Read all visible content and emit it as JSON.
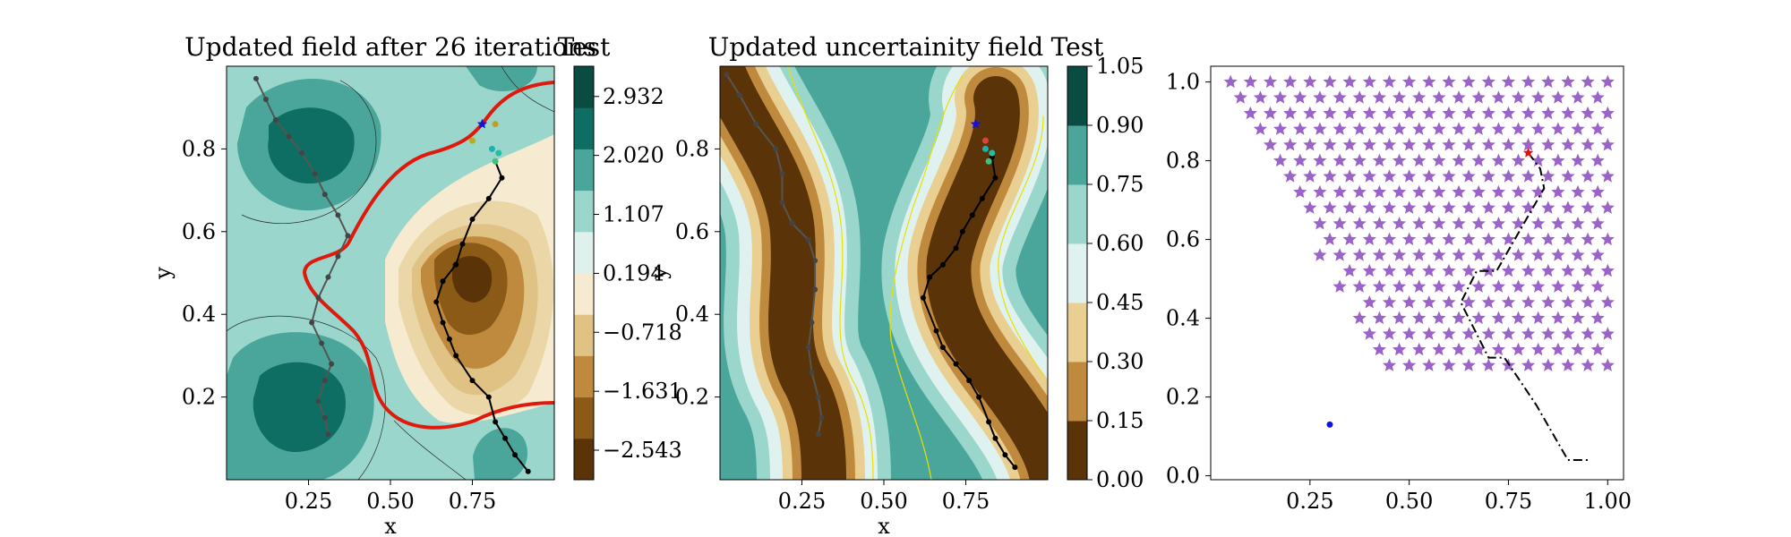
{
  "chart_data": [
    {
      "type": "contour",
      "title": "Updated field after 26 iterations",
      "xlabel": "x",
      "ylabel": "y",
      "xlim": [
        0.0,
        1.0
      ],
      "ylim": [
        0.0,
        1.0
      ],
      "x_ticks": [
        "0.25",
        "0.50",
        "0.75"
      ],
      "y_ticks": [
        "0.2",
        "0.4",
        "0.6",
        "0.8"
      ],
      "colorbar": {
        "title": "Test",
        "min": -3.0,
        "max": 3.4,
        "ticks": [
          "2.932",
          "2.020",
          "1.107",
          "0.194",
          "−0.718",
          "−1.631",
          "−2.543"
        ],
        "tick_values": [
          2.932,
          2.02,
          1.107,
          0.194,
          -0.718,
          -1.631,
          -2.543
        ],
        "colors": [
          "#5a3408",
          "#8b5a16",
          "#c08a3e",
          "#dfc284",
          "#f6ead0",
          "#dff1ec",
          "#9ad6cc",
          "#4aa69a",
          "#0f6e63",
          "#0a4b42"
        ]
      },
      "colors": {
        "boundary": "#e0190d",
        "path_dark": "#000000",
        "path_grey": "#555555"
      },
      "path_black": [
        [
          0.92,
          0.02
        ],
        [
          0.88,
          0.06
        ],
        [
          0.85,
          0.1
        ],
        [
          0.82,
          0.14
        ],
        [
          0.8,
          0.2
        ],
        [
          0.75,
          0.24
        ],
        [
          0.7,
          0.3
        ],
        [
          0.68,
          0.34
        ],
        [
          0.66,
          0.38
        ],
        [
          0.64,
          0.43
        ],
        [
          0.66,
          0.48
        ],
        [
          0.7,
          0.52
        ],
        [
          0.72,
          0.57
        ],
        [
          0.75,
          0.63
        ],
        [
          0.8,
          0.68
        ],
        [
          0.84,
          0.73
        ],
        [
          0.82,
          0.77
        ]
      ],
      "path_grey": [
        [
          0.31,
          0.11
        ],
        [
          0.3,
          0.15
        ],
        [
          0.28,
          0.19
        ],
        [
          0.3,
          0.24
        ],
        [
          0.32,
          0.28
        ],
        [
          0.29,
          0.33
        ],
        [
          0.26,
          0.38
        ],
        [
          0.28,
          0.44
        ],
        [
          0.31,
          0.49
        ],
        [
          0.34,
          0.54
        ],
        [
          0.37,
          0.59
        ],
        [
          0.34,
          0.64
        ],
        [
          0.3,
          0.69
        ],
        [
          0.27,
          0.74
        ],
        [
          0.23,
          0.79
        ],
        [
          0.19,
          0.83
        ],
        [
          0.15,
          0.87
        ],
        [
          0.12,
          0.92
        ],
        [
          0.09,
          0.97
        ]
      ],
      "sample_points": [
        {
          "x": 0.78,
          "y": 0.86,
          "color": "#1010e0",
          "shape": "star"
        },
        {
          "x": 0.82,
          "y": 0.86,
          "color": "#c0a020",
          "shape": "dot"
        },
        {
          "x": 0.75,
          "y": 0.82,
          "color": "#b0b020",
          "shape": "dot"
        },
        {
          "x": 0.81,
          "y": 0.8,
          "color": "#20b0b0",
          "shape": "dot"
        },
        {
          "x": 0.83,
          "y": 0.79,
          "color": "#20c0a0",
          "shape": "dot"
        },
        {
          "x": 0.82,
          "y": 0.77,
          "color": "#40c080",
          "shape": "dot"
        }
      ]
    },
    {
      "type": "contour",
      "title": "Updated uncertainity field",
      "xlabel": "x",
      "ylabel": "y",
      "xlim": [
        0.0,
        1.0
      ],
      "ylim": [
        0.0,
        1.0
      ],
      "x_ticks": [
        "0.25",
        "0.50",
        "0.75"
      ],
      "y_ticks": [
        "0.2",
        "0.4",
        "0.6",
        "0.8"
      ],
      "colorbar": {
        "title": "Test",
        "min": 0.0,
        "max": 1.05,
        "ticks": [
          "1.05",
          "0.90",
          "0.75",
          "0.60",
          "0.45",
          "0.30",
          "0.15",
          "0.00"
        ],
        "tick_values": [
          1.05,
          0.9,
          0.75,
          0.6,
          0.45,
          0.3,
          0.15,
          0.0
        ],
        "colors": [
          "#5a3408",
          "#c08a3e",
          "#e9cf92",
          "#e0f2ef",
          "#9ad6cc",
          "#4aa69a",
          "#0a4b42"
        ]
      },
      "colors": {
        "contour_line": "#e8e000"
      },
      "path_black": [
        [
          0.9,
          0.03
        ],
        [
          0.87,
          0.06
        ],
        [
          0.84,
          0.1
        ],
        [
          0.82,
          0.14
        ],
        [
          0.79,
          0.2
        ],
        [
          0.76,
          0.24
        ],
        [
          0.72,
          0.28
        ],
        [
          0.68,
          0.32
        ],
        [
          0.66,
          0.36
        ],
        [
          0.62,
          0.44
        ],
        [
          0.64,
          0.49
        ],
        [
          0.68,
          0.52
        ],
        [
          0.72,
          0.56
        ],
        [
          0.74,
          0.6
        ],
        [
          0.77,
          0.64
        ],
        [
          0.8,
          0.68
        ],
        [
          0.84,
          0.73
        ],
        [
          0.83,
          0.78
        ]
      ],
      "path_grey": [
        [
          0.3,
          0.11
        ],
        [
          0.31,
          0.15
        ],
        [
          0.3,
          0.2
        ],
        [
          0.28,
          0.26
        ],
        [
          0.27,
          0.32
        ],
        [
          0.28,
          0.38
        ],
        [
          0.29,
          0.46
        ],
        [
          0.29,
          0.53
        ],
        [
          0.27,
          0.58
        ],
        [
          0.22,
          0.62
        ],
        [
          0.19,
          0.67
        ],
        [
          0.19,
          0.74
        ],
        [
          0.17,
          0.8
        ],
        [
          0.11,
          0.86
        ],
        [
          0.06,
          0.93
        ],
        [
          0.02,
          0.98
        ]
      ],
      "sample_points": [
        {
          "x": 0.78,
          "y": 0.86,
          "color": "#1010e0",
          "shape": "star"
        },
        {
          "x": 0.81,
          "y": 0.82,
          "color": "#e04040",
          "shape": "dot"
        },
        {
          "x": 0.81,
          "y": 0.8,
          "color": "#20b0b0",
          "shape": "dot"
        },
        {
          "x": 0.83,
          "y": 0.79,
          "color": "#20c0a0",
          "shape": "dot"
        },
        {
          "x": 0.82,
          "y": 0.77,
          "color": "#40c080",
          "shape": "dot"
        }
      ]
    },
    {
      "type": "scatter",
      "title": "",
      "xlabel": "",
      "ylabel": "",
      "xlim": [
        0.0,
        1.04
      ],
      "ylim": [
        -0.01,
        1.04
      ],
      "x_ticks": [
        "0.25",
        "0.50",
        "0.75",
        "1.00"
      ],
      "y_ticks": [
        "0.0",
        "0.2",
        "0.4",
        "0.6",
        "0.8",
        "1.0"
      ],
      "grid": false,
      "colors": {
        "stars": "#9a63c8",
        "red_point": "#e01010",
        "blue_point": "#1010e0",
        "path": "#000000"
      },
      "stars": {
        "x_start": 0.05,
        "x_step": 0.05,
        "y_start": 1.0,
        "y_step": 0.04,
        "rows": [
          [
            0,
            19
          ],
          [
            1,
            19
          ],
          [
            2,
            19
          ],
          [
            3,
            19
          ],
          [
            4,
            19
          ],
          [
            5,
            19
          ],
          [
            6,
            19
          ],
          [
            7,
            19
          ],
          [
            8,
            19
          ],
          [
            9,
            19
          ],
          [
            10,
            19
          ],
          [
            11,
            19
          ],
          [
            12,
            19
          ],
          [
            13,
            19
          ],
          [
            14,
            19
          ],
          [
            15,
            19
          ],
          [
            16,
            19
          ],
          [
            17,
            19
          ],
          [
            18,
            19
          ]
        ],
        "row_start_offsets": [
          0,
          1,
          1,
          2,
          2,
          3,
          3,
          4,
          4,
          5,
          5,
          5,
          6,
          6,
          7,
          7,
          7,
          8,
          8
        ]
      },
      "red_point": {
        "x": 0.8,
        "y": 0.82
      },
      "blue_point": {
        "x": 0.3,
        "y": 0.13
      },
      "path": [
        [
          0.8,
          0.82
        ],
        [
          0.83,
          0.78
        ],
        [
          0.84,
          0.73
        ],
        [
          0.76,
          0.59
        ],
        [
          0.72,
          0.52
        ],
        [
          0.67,
          0.52
        ],
        [
          0.63,
          0.44
        ],
        [
          0.66,
          0.38
        ],
        [
          0.7,
          0.3
        ],
        [
          0.74,
          0.3
        ],
        [
          0.82,
          0.18
        ],
        [
          0.9,
          0.04
        ],
        [
          0.95,
          0.04
        ]
      ]
    }
  ]
}
